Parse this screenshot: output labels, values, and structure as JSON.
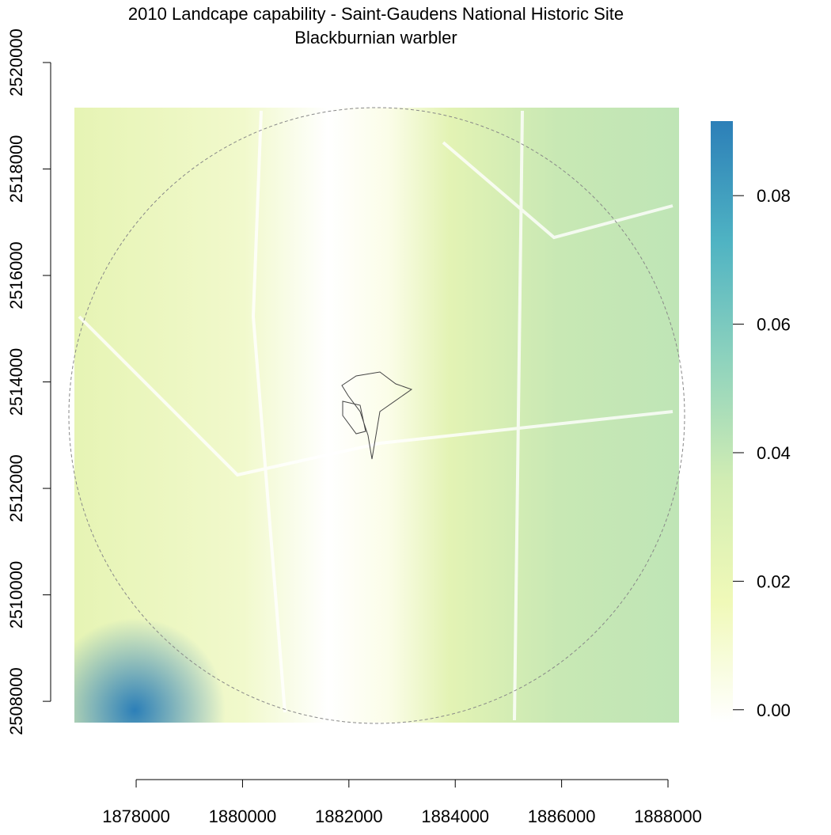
{
  "chart_data": {
    "type": "raster",
    "title": "2010 Landcape capability - Saint-Gaudens National Historic Site",
    "subtitle": "Blackburnian warbler",
    "xlim": [
      1876800,
      1888400
    ],
    "ylim": [
      2507600,
      2520000
    ],
    "xticks": [
      1878000,
      1880000,
      1882000,
      1884000,
      1886000,
      1888000
    ],
    "yticks": [
      2508000,
      2510000,
      2512000,
      2514000,
      2516000,
      2518000,
      2520000
    ],
    "colorbar": {
      "lim": [
        -0.002,
        0.0916
      ],
      "ticks": [
        {
          "value": 0,
          "label": "0.00"
        },
        {
          "value": 0.02,
          "label": "0.02"
        },
        {
          "value": 0.04,
          "label": "0.04"
        },
        {
          "value": 0.06,
          "label": "0.06"
        },
        {
          "value": 0.08,
          "label": "0.08"
        }
      ],
      "colors": [
        "#ffffff",
        "#f0f9b8",
        "#d2edb3",
        "#8fd3bd",
        "#4fb3c3",
        "#2c7fb8"
      ]
    }
  }
}
